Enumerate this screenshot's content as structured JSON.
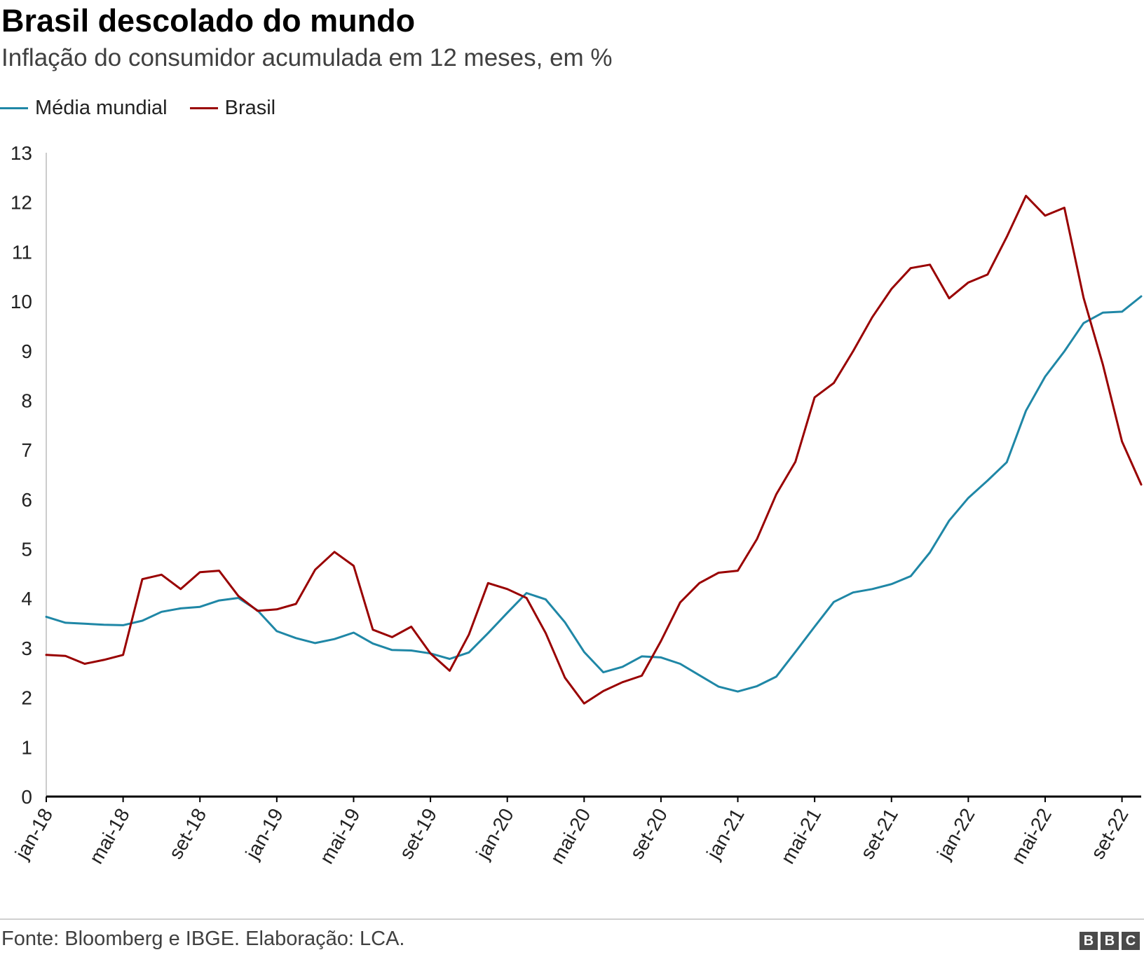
{
  "header": {
    "title": "Brasil descolado do mundo",
    "subtitle": "Inflação do consumidor acumulada em 12 meses, em %"
  },
  "legend": [
    {
      "label": "Média mundial",
      "color": "#1f87a6"
    },
    {
      "label": "Brasil",
      "color": "#990000"
    }
  ],
  "footer": {
    "source": "Fonte: Bloomberg e IBGE. Elaboração: LCA.",
    "logo_letters": [
      "B",
      "B",
      "C"
    ]
  },
  "chart_data": {
    "type": "line",
    "title": "Brasil descolado do mundo",
    "subtitle": "Inflação do consumidor acumulada em 12 meses, em %",
    "xlabel": "",
    "ylabel": "",
    "ylim": [
      0,
      13
    ],
    "yticks": [
      0,
      1,
      2,
      3,
      4,
      5,
      6,
      7,
      8,
      9,
      10,
      11,
      12,
      13
    ],
    "grid": false,
    "legend_position": "top-left",
    "x": [
      "jan-18",
      "fev-18",
      "mar-18",
      "abr-18",
      "mai-18",
      "jun-18",
      "jul-18",
      "ago-18",
      "set-18",
      "out-18",
      "nov-18",
      "dez-18",
      "jan-19",
      "fev-19",
      "mar-19",
      "abr-19",
      "mai-19",
      "jun-19",
      "jul-19",
      "ago-19",
      "set-19",
      "out-19",
      "nov-19",
      "dez-19",
      "jan-20",
      "fev-20",
      "mar-20",
      "abr-20",
      "mai-20",
      "jun-20",
      "jul-20",
      "ago-20",
      "set-20",
      "out-20",
      "nov-20",
      "dez-20",
      "jan-21",
      "fev-21",
      "mar-21",
      "abr-21",
      "mai-21",
      "jun-21",
      "jul-21",
      "ago-21",
      "set-21",
      "out-21",
      "nov-21",
      "dez-21",
      "jan-22",
      "fev-22",
      "mar-22",
      "abr-22",
      "mai-22",
      "jun-22",
      "jul-22",
      "ago-22",
      "set-22",
      "out-22"
    ],
    "tick_labels": [
      "jan-18",
      "mai-18",
      "set-18",
      "jan-19",
      "mai-19",
      "set-19",
      "jan-20",
      "mai-20",
      "set-20",
      "jan-21",
      "mai-21",
      "set-21",
      "jan-22",
      "mai-22",
      "set-22"
    ],
    "series": [
      {
        "name": "Média mundial",
        "color": "#1f87a6",
        "values": [
          3.63,
          3.51,
          3.49,
          3.47,
          3.46,
          3.55,
          3.73,
          3.8,
          3.83,
          3.96,
          4.01,
          3.76,
          3.34,
          3.2,
          3.1,
          3.18,
          3.31,
          3.09,
          2.96,
          2.95,
          2.89,
          2.78,
          2.91,
          3.3,
          3.71,
          4.11,
          3.98,
          3.52,
          2.92,
          2.51,
          2.62,
          2.83,
          2.81,
          2.68,
          2.45,
          2.22,
          2.12,
          2.23,
          2.42,
          2.92,
          3.43,
          3.93,
          4.12,
          4.19,
          4.29,
          4.45,
          4.93,
          5.57,
          6.03,
          6.38,
          6.75,
          7.79,
          8.48,
          8.99,
          9.56,
          9.77,
          9.79,
          10.1
        ]
      },
      {
        "name": "Brasil",
        "color": "#990000",
        "values": [
          2.86,
          2.84,
          2.68,
          2.76,
          2.86,
          4.39,
          4.48,
          4.19,
          4.53,
          4.56,
          4.05,
          3.75,
          3.78,
          3.89,
          4.58,
          4.94,
          4.66,
          3.37,
          3.22,
          3.43,
          2.89,
          2.54,
          3.27,
          4.31,
          4.19,
          4.01,
          3.3,
          2.4,
          1.88,
          2.13,
          2.31,
          2.44,
          3.14,
          3.92,
          4.31,
          4.52,
          4.56,
          5.2,
          6.1,
          6.76,
          8.06,
          8.35,
          8.99,
          9.68,
          10.25,
          10.67,
          10.74,
          10.06,
          10.38,
          10.54,
          11.3,
          12.13,
          11.73,
          11.89,
          10.07,
          8.73,
          7.17,
          6.3
        ]
      }
    ]
  }
}
